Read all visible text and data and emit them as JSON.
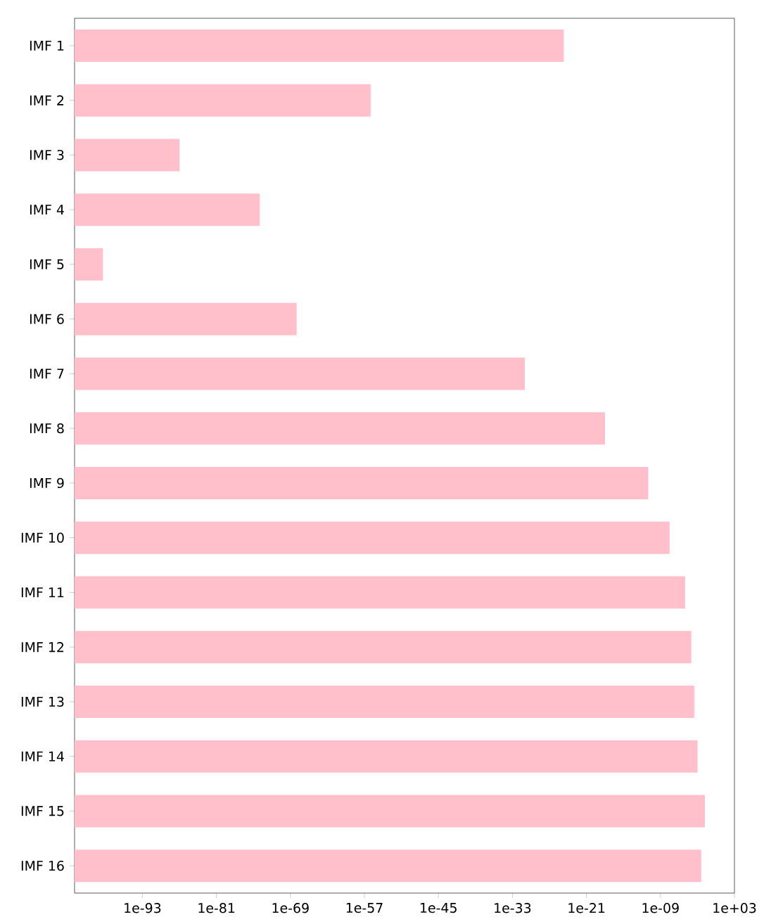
{
  "chart_data": {
    "type": "bar",
    "orientation": "horizontal",
    "log": "x",
    "categories": [
      "IMF 1",
      "IMF 2",
      "IMF 3",
      "IMF 4",
      "IMF 5",
      "IMF 6",
      "IMF 7",
      "IMF 8",
      "IMF 9",
      "IMF 10",
      "IMF 11",
      "IMF 12",
      "IMF 13",
      "IMF 14",
      "IMF 15",
      "IMF 16"
    ],
    "values": [
      2e-25,
      1e-56,
      1e-87,
      1e-74,
      4e-100,
      1e-68,
      1e-31,
      1e-18,
      1e-11,
      3e-08,
      1e-05,
      0.0001,
      0.0003,
      0.001,
      0.016,
      0.004
    ],
    "color": "#ffc0cb",
    "xlim": [
      1e-104,
      1000
    ],
    "xticks": [
      {
        "value": 1e-93,
        "label": "1e-93"
      },
      {
        "value": 1e-81,
        "label": "1e-81"
      },
      {
        "value": 1e-69,
        "label": "1e-69"
      },
      {
        "value": 1e-57,
        "label": "1e-57"
      },
      {
        "value": 1e-45,
        "label": "1e-45"
      },
      {
        "value": 1e-33,
        "label": "1e-33"
      },
      {
        "value": 1e-21,
        "label": "1e-21"
      },
      {
        "value": 1e-09,
        "label": "1e-09"
      },
      {
        "value": 1000,
        "label": "1e+03"
      }
    ]
  }
}
